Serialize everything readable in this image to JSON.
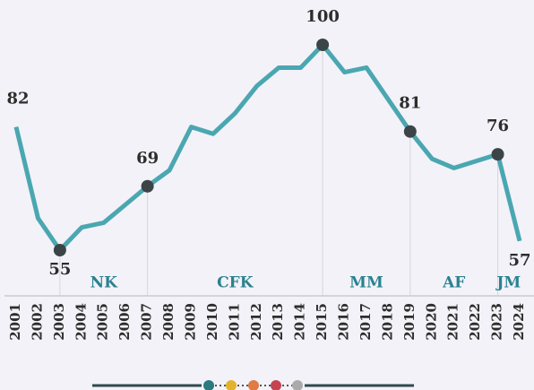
{
  "chart_data": {
    "type": "line",
    "categories": [
      "2001",
      "2002",
      "2003",
      "2004",
      "2005",
      "2006",
      "2007",
      "2008",
      "2009",
      "2010",
      "2011",
      "2012",
      "2013",
      "2014",
      "2015",
      "2016",
      "2017",
      "2018",
      "2019",
      "2020",
      "2021",
      "2022",
      "2023",
      "2024"
    ],
    "values": [
      82,
      62,
      55,
      60,
      61,
      65,
      69,
      72.5,
      82,
      80.5,
      85,
      91,
      95,
      95,
      100,
      94,
      95,
      88,
      81,
      75,
      73,
      74.5,
      76,
      57
    ],
    "color": "#4aa7b1",
    "labeled": [
      0,
      2,
      6,
      14,
      18,
      22,
      23
    ],
    "markers": [
      2,
      6,
      14,
      18,
      22
    ],
    "periods": [
      {
        "label": "NK",
        "from": "2003",
        "to": "2007"
      },
      {
        "label": "CFK",
        "from": "2007",
        "to": "2015"
      },
      {
        "label": "MM",
        "from": "2015",
        "to": "2019"
      },
      {
        "label": "AF",
        "from": "2019",
        "to": "2023"
      },
      {
        "label": "JM",
        "from": "2023",
        "to": "2024"
      }
    ]
  }
}
